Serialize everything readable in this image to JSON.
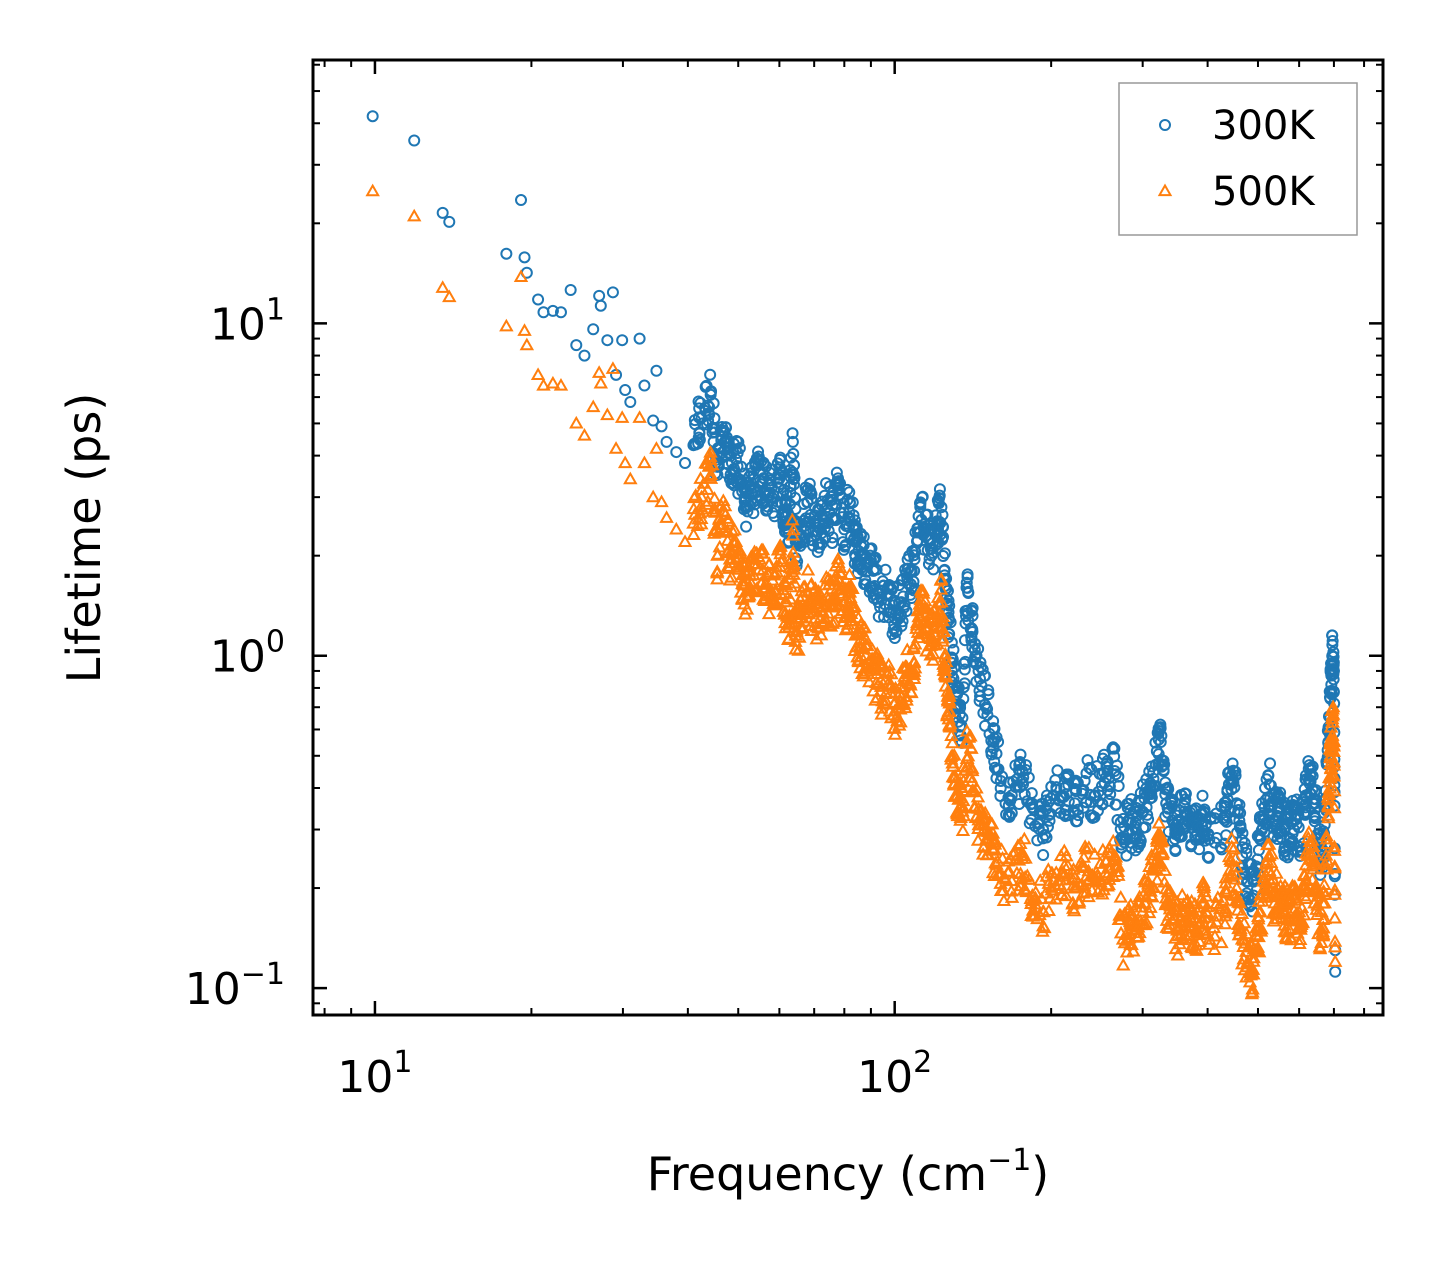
{
  "colors": {
    "s300": "#1f77b4",
    "s500": "#ff7f0e",
    "axis": "#000000",
    "legend_border": "#999999"
  },
  "chart_data": {
    "type": "scatter",
    "title": "",
    "xlabel": "Frequency (cm",
    "xlabel_sup": "−1",
    "xlabel_end": ")",
    "ylabel": "Lifetime (ps)",
    "xscale": "log",
    "yscale": "log",
    "xlim": [
      7.6,
      870
    ],
    "ylim": [
      0.083,
      62
    ],
    "grid": false,
    "legend_position": "top-right",
    "x_ticks": [
      {
        "value": 10,
        "base": "10",
        "exp": "1"
      },
      {
        "value": 100,
        "base": "10",
        "exp": "2"
      }
    ],
    "y_ticks": [
      {
        "value": 0.1,
        "base": "10",
        "exp": "−1"
      },
      {
        "value": 1,
        "base": "10",
        "exp": "0"
      },
      {
        "value": 10,
        "base": "10",
        "exp": "1"
      }
    ],
    "series": [
      {
        "name": "300K",
        "marker": "circle",
        "color": "#1f77b4",
        "points": [
          [
            9.9,
            42
          ],
          [
            11.9,
            35.5
          ],
          [
            13.5,
            21.5
          ],
          [
            13.9,
            20.2
          ],
          [
            17.9,
            16.2
          ],
          [
            19.1,
            23.5
          ],
          [
            19.4,
            15.8
          ],
          [
            19.6,
            14.2
          ],
          [
            20.6,
            11.8
          ],
          [
            21.1,
            10.8
          ],
          [
            22.0,
            10.9
          ],
          [
            22.8,
            10.8
          ],
          [
            23.8,
            12.6
          ],
          [
            24.4,
            8.6
          ],
          [
            25.3,
            8.0
          ],
          [
            26.3,
            9.6
          ],
          [
            27.0,
            12.1
          ],
          [
            27.2,
            11.3
          ],
          [
            28.0,
            8.9
          ],
          [
            28.7,
            12.4
          ],
          [
            29.1,
            7.0
          ],
          [
            29.9,
            8.9
          ],
          [
            30.3,
            6.3
          ],
          [
            31.0,
            5.8
          ],
          [
            32.3,
            9.0
          ],
          [
            33.0,
            6.5
          ],
          [
            34.3,
            5.1
          ],
          [
            34.8,
            7.2
          ],
          [
            35.6,
            4.9
          ],
          [
            36.4,
            4.4
          ],
          [
            38.0,
            4.1
          ],
          [
            39.5,
            3.8
          ],
          [
            41.0,
            4.3
          ],
          [
            42.5,
            5.2
          ],
          [
            44.3,
            6.2
          ],
          [
            45.6,
            3.5
          ],
          [
            47.0,
            4.7
          ],
          [
            48.2,
            3.4
          ],
          [
            49.5,
            3.9
          ],
          [
            51.0,
            3.3
          ],
          [
            52.0,
            2.8
          ],
          [
            53.5,
            3.2
          ],
          [
            55.0,
            3.6
          ],
          [
            56.5,
            3.1
          ],
          [
            58.0,
            3.0
          ],
          [
            60.2,
            3.5
          ],
          [
            61.5,
            2.7
          ],
          [
            62.5,
            2.5
          ],
          [
            63.7,
            4.4
          ],
          [
            64.5,
            2.2
          ],
          [
            66.0,
            2.4
          ],
          [
            68.0,
            2.9
          ],
          [
            70.0,
            2.5
          ],
          [
            72.0,
            2.4
          ],
          [
            74.0,
            2.8
          ],
          [
            76.0,
            2.6
          ],
          [
            78.0,
            3.2
          ],
          [
            80.0,
            2.4
          ],
          [
            82.0,
            2.9
          ],
          [
            84.0,
            2.2
          ],
          [
            86.0,
            2.0
          ],
          [
            88.0,
            1.9
          ],
          [
            91.0,
            1.8
          ],
          [
            94.0,
            1.5
          ],
          [
            97.0,
            1.6
          ],
          [
            100.0,
            1.3
          ],
          [
            103.0,
            1.45
          ],
          [
            106.0,
            1.65
          ],
          [
            109.0,
            1.8
          ],
          [
            112.0,
            2.8
          ],
          [
            115.0,
            2.3
          ],
          [
            118.0,
            2.1
          ],
          [
            121.0,
            2.5
          ],
          [
            123.0,
            2.8
          ],
          [
            125.0,
            1.7
          ],
          [
            127.0,
            1.3
          ],
          [
            129.0,
            0.95
          ],
          [
            132.0,
            0.7
          ],
          [
            135.0,
            0.65
          ],
          [
            138.0,
            1.6
          ],
          [
            141.0,
            1.2
          ],
          [
            145.0,
            0.9
          ],
          [
            150.0,
            0.7
          ],
          [
            155.0,
            0.55
          ],
          [
            160.0,
            0.42
          ],
          [
            168.0,
            0.38
          ],
          [
            176.0,
            0.45
          ],
          [
            184.0,
            0.35
          ],
          [
            193.0,
            0.3
          ],
          [
            202.0,
            0.38
          ],
          [
            212.0,
            0.4
          ],
          [
            222.0,
            0.36
          ],
          [
            232.0,
            0.42
          ],
          [
            243.0,
            0.38
          ],
          [
            255.0,
            0.43
          ],
          [
            265.0,
            0.45
          ],
          [
            275.0,
            0.28
          ],
          [
            283.0,
            0.32
          ],
          [
            291.0,
            0.3
          ],
          [
            300.0,
            0.34
          ],
          [
            310.0,
            0.4
          ],
          [
            318.0,
            0.47
          ],
          [
            325.0,
            0.55
          ],
          [
            333.0,
            0.36
          ],
          [
            342.0,
            0.32
          ],
          [
            351.0,
            0.3
          ],
          [
            361.0,
            0.34
          ],
          [
            372.0,
            0.31
          ],
          [
            382.0,
            0.29
          ],
          [
            393.0,
            0.34
          ],
          [
            403.0,
            0.28
          ],
          [
            432.0,
            0.32
          ],
          [
            444.0,
            0.42
          ],
          [
            455.0,
            0.36
          ],
          [
            466.0,
            0.25
          ],
          [
            478.0,
            0.21
          ],
          [
            490.0,
            0.19
          ],
          [
            502.0,
            0.26
          ],
          [
            514.0,
            0.35
          ],
          [
            526.0,
            0.41
          ],
          [
            538.0,
            0.32
          ],
          [
            550.0,
            0.34
          ],
          [
            563.0,
            0.3
          ],
          [
            576.0,
            0.28
          ],
          [
            590.0,
            0.33
          ],
          [
            604.0,
            0.26
          ],
          [
            618.0,
            0.38
          ],
          [
            632.0,
            0.46
          ],
          [
            645.0,
            0.36
          ],
          [
            660.0,
            0.24
          ],
          [
            672.0,
            0.31
          ],
          [
            683.0,
            0.55
          ],
          [
            690.0,
            0.78
          ],
          [
            695.0,
            1.0
          ],
          [
            700.0,
            0.9
          ],
          [
            704.0,
            0.13
          ]
        ]
      },
      {
        "name": "500K",
        "marker": "triangle",
        "color": "#ff7f0e",
        "points": [
          [
            9.9,
            25
          ],
          [
            11.9,
            21
          ],
          [
            13.5,
            12.8
          ],
          [
            13.9,
            12.0
          ],
          [
            17.9,
            9.8
          ],
          [
            19.1,
            13.8
          ],
          [
            19.4,
            9.5
          ],
          [
            19.6,
            8.6
          ],
          [
            20.6,
            7.0
          ],
          [
            21.1,
            6.5
          ],
          [
            22.0,
            6.6
          ],
          [
            22.8,
            6.5
          ],
          [
            24.4,
            5.0
          ],
          [
            25.3,
            4.6
          ],
          [
            26.3,
            5.6
          ],
          [
            27.0,
            7.1
          ],
          [
            27.2,
            6.6
          ],
          [
            28.0,
            5.3
          ],
          [
            28.7,
            7.3
          ],
          [
            29.1,
            4.2
          ],
          [
            29.9,
            5.2
          ],
          [
            30.3,
            3.8
          ],
          [
            31.0,
            3.4
          ],
          [
            32.3,
            5.2
          ],
          [
            33.0,
            3.8
          ],
          [
            34.3,
            3.0
          ],
          [
            34.8,
            4.2
          ],
          [
            35.6,
            2.9
          ],
          [
            36.4,
            2.6
          ],
          [
            38.0,
            2.4
          ],
          [
            39.5,
            2.2
          ],
          [
            41.0,
            2.5
          ],
          [
            42.5,
            3.0
          ],
          [
            44.3,
            3.5
          ],
          [
            45.6,
            2.0
          ],
          [
            47.0,
            2.7
          ],
          [
            48.2,
            1.95
          ],
          [
            49.5,
            2.2
          ],
          [
            51.0,
            1.75
          ],
          [
            52.0,
            1.5
          ],
          [
            53.5,
            1.75
          ],
          [
            55.0,
            1.95
          ],
          [
            56.5,
            1.65
          ],
          [
            58.0,
            1.55
          ],
          [
            60.2,
            1.85
          ],
          [
            61.5,
            1.45
          ],
          [
            62.5,
            1.3
          ],
          [
            63.7,
            2.3
          ],
          [
            64.5,
            1.15
          ],
          [
            66.0,
            1.3
          ],
          [
            68.0,
            1.55
          ],
          [
            70.0,
            1.35
          ],
          [
            72.0,
            1.3
          ],
          [
            74.0,
            1.5
          ],
          [
            76.0,
            1.4
          ],
          [
            78.0,
            1.7
          ],
          [
            80.0,
            1.3
          ],
          [
            82.0,
            1.55
          ],
          [
            84.0,
            1.15
          ],
          [
            86.0,
            1.05
          ],
          [
            88.0,
            1.0
          ],
          [
            91.0,
            0.92
          ],
          [
            94.0,
            0.78
          ],
          [
            97.0,
            0.82
          ],
          [
            100.0,
            0.68
          ],
          [
            103.0,
            0.75
          ],
          [
            106.0,
            0.88
          ],
          [
            109.0,
            0.95
          ],
          [
            112.0,
            1.4
          ],
          [
            115.0,
            1.2
          ],
          [
            118.0,
            1.1
          ],
          [
            121.0,
            1.3
          ],
          [
            123.0,
            1.45
          ],
          [
            125.0,
            0.9
          ],
          [
            127.0,
            0.68
          ],
          [
            129.0,
            0.5
          ],
          [
            132.0,
            0.38
          ],
          [
            135.0,
            0.34
          ],
          [
            138.0,
            0.55
          ],
          [
            141.0,
            0.45
          ],
          [
            145.0,
            0.32
          ],
          [
            150.0,
            0.28
          ],
          [
            155.0,
            0.26
          ],
          [
            160.0,
            0.22
          ],
          [
            168.0,
            0.21
          ],
          [
            176.0,
            0.25
          ],
          [
            184.0,
            0.19
          ],
          [
            193.0,
            0.17
          ],
          [
            202.0,
            0.21
          ],
          [
            212.0,
            0.22
          ],
          [
            222.0,
            0.2
          ],
          [
            232.0,
            0.23
          ],
          [
            243.0,
            0.21
          ],
          [
            255.0,
            0.24
          ],
          [
            265.0,
            0.25
          ],
          [
            275.0,
            0.14
          ],
          [
            283.0,
            0.16
          ],
          [
            291.0,
            0.15
          ],
          [
            300.0,
            0.17
          ],
          [
            310.0,
            0.2
          ],
          [
            318.0,
            0.24
          ],
          [
            325.0,
            0.28
          ],
          [
            333.0,
            0.18
          ],
          [
            342.0,
            0.16
          ],
          [
            351.0,
            0.15
          ],
          [
            361.0,
            0.17
          ],
          [
            372.0,
            0.16
          ],
          [
            382.0,
            0.15
          ],
          [
            393.0,
            0.18
          ],
          [
            403.0,
            0.14
          ],
          [
            432.0,
            0.17
          ],
          [
            444.0,
            0.24
          ],
          [
            455.0,
            0.2
          ],
          [
            466.0,
            0.14
          ],
          [
            478.0,
            0.12
          ],
          [
            490.0,
            0.11
          ],
          [
            502.0,
            0.15
          ],
          [
            514.0,
            0.2
          ],
          [
            526.0,
            0.25
          ],
          [
            538.0,
            0.18
          ],
          [
            550.0,
            0.19
          ],
          [
            563.0,
            0.17
          ],
          [
            576.0,
            0.16
          ],
          [
            590.0,
            0.19
          ],
          [
            604.0,
            0.15
          ],
          [
            618.0,
            0.21
          ],
          [
            632.0,
            0.27
          ],
          [
            645.0,
            0.2
          ],
          [
            660.0,
            0.15
          ],
          [
            672.0,
            0.18
          ],
          [
            683.0,
            0.35
          ],
          [
            690.0,
            0.5
          ],
          [
            695.0,
            0.63
          ],
          [
            700.0,
            0.55
          ],
          [
            704.0,
            0.12
          ]
        ]
      }
    ]
  }
}
